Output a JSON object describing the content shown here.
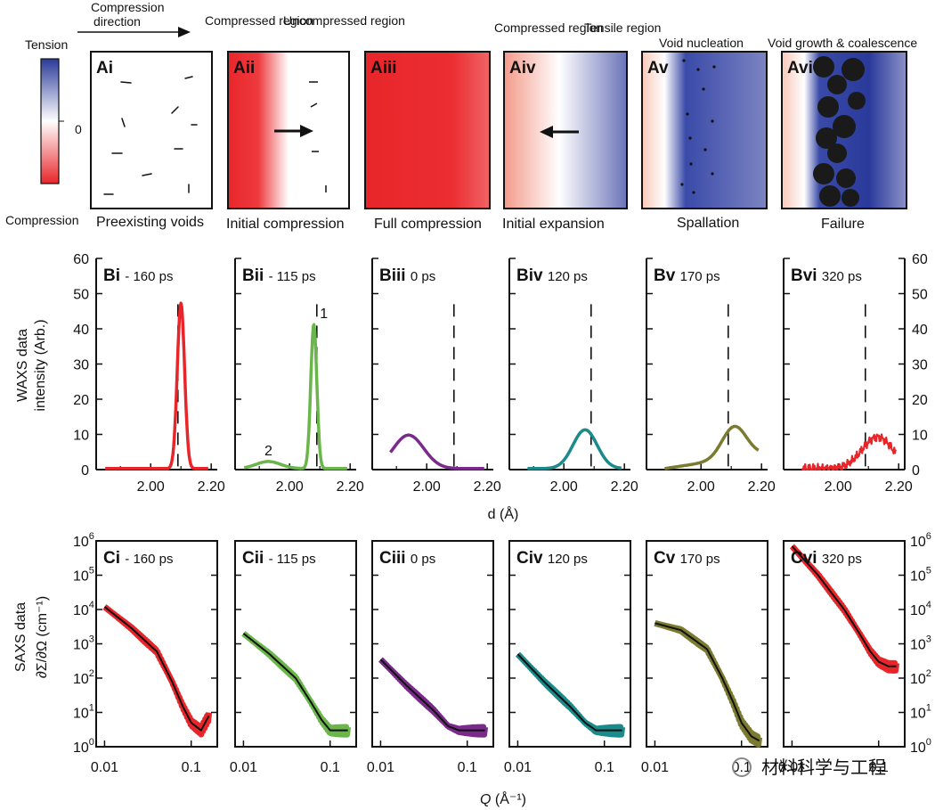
{
  "colorbar": {
    "top": "Tension",
    "mid": "0",
    "bottom": "Compression"
  },
  "compression_header": {
    "line1": "Compression",
    "line2": "direction"
  },
  "row_a": [
    {
      "id": "Ai",
      "caption": "Preexisting voids",
      "labels": []
    },
    {
      "id": "Aii",
      "caption": "Initial compression",
      "labels": [
        "Compressed region",
        "Uncompressed region"
      ]
    },
    {
      "id": "Aiii",
      "caption": "Full compression",
      "labels": []
    },
    {
      "id": "Aiv",
      "caption": "Initial expansion",
      "labels": [
        "Compressed region",
        "Tensile region"
      ]
    },
    {
      "id": "Av",
      "caption": "Spallation",
      "labels": [
        "Void nucleation"
      ]
    },
    {
      "id": "Avi",
      "caption": "Failure",
      "labels": [
        "Void growth & coalescence"
      ]
    }
  ],
  "colors": {
    "red": "#e8262a",
    "green": "#6ab64a",
    "purple": "#7a2a8a",
    "teal": "#1a8a8a",
    "olive": "#7a7a30",
    "navy": "#2a3a9a",
    "black": "#111111"
  },
  "watermark": "材料科学与工程",
  "chart_data": [
    {
      "type": "line",
      "ylabel": "WAXS data intensity (Arb.)",
      "xlabel": "d (Å)",
      "ylim": [
        0,
        60
      ],
      "yticks": [
        "0",
        "10",
        "20",
        "30",
        "40",
        "50",
        "60"
      ],
      "xticks": [
        "2.00",
        "2.20"
      ],
      "dashed_reference_d": 2.09,
      "panels": [
        {
          "id": "Bi",
          "time": "- 160 ps",
          "xlim": [
            1.82,
            2.22
          ],
          "color": "#e8262a",
          "peaks": [
            {
              "center": 2.1,
              "amp": 47,
              "width": 0.012
            }
          ]
        },
        {
          "id": "Bii",
          "time": "- 115 ps",
          "xlim": [
            1.82,
            2.22
          ],
          "color": "#6ab64a",
          "peaks": [
            {
              "center": 2.08,
              "amp": 41,
              "width": 0.01
            },
            {
              "center": 1.93,
              "amp": 2,
              "width": 0.04
            }
          ],
          "peak_labels": [
            "1",
            "2"
          ]
        },
        {
          "id": "Biii",
          "time": "0 ps",
          "xlim": [
            1.82,
            2.22
          ],
          "color": "#7a2a8a",
          "peaks": [
            {
              "center": 1.94,
              "amp": 9.5,
              "width": 0.05
            }
          ]
        },
        {
          "id": "Biv",
          "time": "120 ps",
          "xlim": [
            1.82,
            2.22
          ],
          "color": "#1a8a8a",
          "peaks": [
            {
              "center": 2.07,
              "amp": 11,
              "width": 0.04
            }
          ]
        },
        {
          "id": "Bv",
          "time": "170 ps",
          "xlim": [
            1.82,
            2.22
          ],
          "color": "#7a7a30",
          "peaks": [
            {
              "center": 2.11,
              "amp": 9,
              "width": 0.04
            }
          ],
          "baseline_rise": 4
        },
        {
          "id": "Bvi",
          "time": "320 ps",
          "xlim": [
            1.82,
            2.22
          ],
          "color": "#e8262a",
          "peaks": [
            {
              "center": 2.13,
              "amp": 9,
              "width": 0.05
            }
          ],
          "noisy": true
        }
      ]
    },
    {
      "type": "line",
      "ylabel": "SAXS data ∂Σ/∂Ω (cm⁻¹)",
      "xlabel": "Q (Å⁻¹)",
      "yscale": "log",
      "ylim": [
        1,
        1000000
      ],
      "yticks_exp": [
        0,
        1,
        2,
        3,
        4,
        5,
        6
      ],
      "xticks": [
        "0.01",
        "0.1"
      ],
      "panels": [
        {
          "id": "Ci",
          "time": "- 160 ps",
          "color": "#e8262a",
          "q": [
            0.01,
            0.02,
            0.04,
            0.06,
            0.08,
            0.1,
            0.13,
            0.16
          ],
          "i": [
            12000,
            3000,
            600,
            80,
            15,
            5,
            3,
            8
          ]
        },
        {
          "id": "Cii",
          "time": "- 115 ps",
          "color": "#6ab64a",
          "q": [
            0.01,
            0.02,
            0.04,
            0.06,
            0.08,
            0.1,
            0.13,
            0.16
          ],
          "i": [
            2000,
            500,
            100,
            20,
            6,
            3,
            3,
            3
          ]
        },
        {
          "id": "Ciii",
          "time": "0 ps",
          "color": "#7a2a8a",
          "q": [
            0.01,
            0.02,
            0.04,
            0.06,
            0.08,
            0.1,
            0.13,
            0.16
          ],
          "i": [
            350,
            60,
            12,
            4,
            3,
            3,
            3,
            3
          ]
        },
        {
          "id": "Civ",
          "time": "120 ps",
          "color": "#1a8a8a",
          "q": [
            0.01,
            0.02,
            0.04,
            0.06,
            0.08,
            0.1,
            0.13,
            0.16
          ],
          "i": [
            500,
            80,
            15,
            5,
            3,
            3,
            3,
            3
          ]
        },
        {
          "id": "Cv",
          "time": "170 ps",
          "color": "#7a7a30",
          "q": [
            0.01,
            0.02,
            0.04,
            0.06,
            0.08,
            0.1,
            0.13,
            0.16
          ],
          "i": [
            4000,
            2500,
            700,
            100,
            20,
            5,
            2,
            1.5
          ]
        },
        {
          "id": "Cvi",
          "time": "320 ps",
          "color": "#e8262a",
          "q": [
            0.01,
            0.02,
            0.04,
            0.06,
            0.08,
            0.1,
            0.13,
            0.16
          ],
          "i": [
            700000,
            100000,
            10000,
            2000,
            600,
            300,
            220,
            220
          ]
        }
      ]
    }
  ]
}
